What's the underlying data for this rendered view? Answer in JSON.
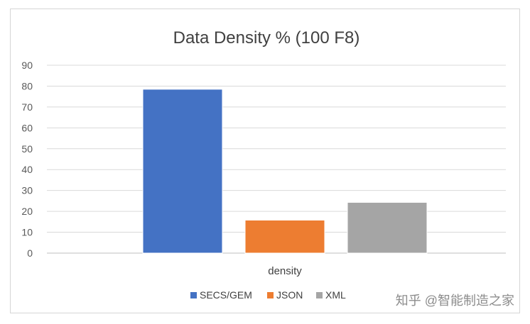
{
  "chart_data": {
    "type": "bar",
    "title": "Data Density % (100 F8)",
    "categories": [
      "density"
    ],
    "series": [
      {
        "name": "SECS/GEM",
        "values": [
          78.5
        ],
        "color": "#4472C4"
      },
      {
        "name": "JSON",
        "values": [
          15.8
        ],
        "color": "#ED7D31"
      },
      {
        "name": "XML",
        "values": [
          24.3
        ],
        "color": "#A5A5A5"
      }
    ],
    "ylim": [
      0,
      90
    ],
    "yticks": [
      0,
      10,
      20,
      30,
      40,
      50,
      60,
      70,
      80,
      90
    ],
    "grid": true,
    "legend_position": "bottom"
  },
  "watermark": {
    "text": "知乎 @智能制造之家"
  }
}
